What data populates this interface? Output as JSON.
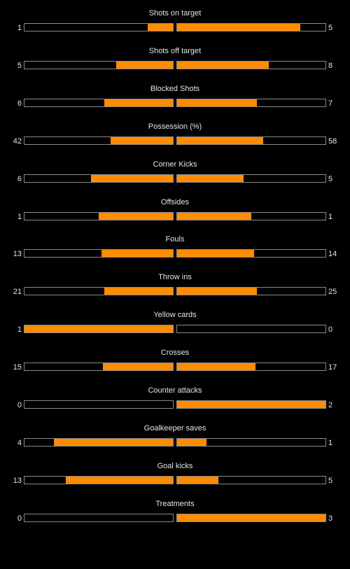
{
  "colors": {
    "background": "#000000",
    "bar_fill": "#ff8c00",
    "bar_border": "#8a8a8a",
    "text": "#e6e6e6"
  },
  "stats": [
    {
      "label": "Shots on target",
      "home": "1",
      "away": "5",
      "home_fill": 0.17,
      "away_fill": 0.83
    },
    {
      "label": "Shots off target",
      "home": "5",
      "away": "8",
      "home_fill": 0.38,
      "away_fill": 0.62
    },
    {
      "label": "Blocked Shots",
      "home": "6",
      "away": "7",
      "home_fill": 0.46,
      "away_fill": 0.54
    },
    {
      "label": "Possession (%)",
      "home": "42",
      "away": "58",
      "home_fill": 0.42,
      "away_fill": 0.58
    },
    {
      "label": "Corner Kicks",
      "home": "6",
      "away": "5",
      "home_fill": 0.55,
      "away_fill": 0.45
    },
    {
      "label": "Offsides",
      "home": "1",
      "away": "1",
      "home_fill": 0.5,
      "away_fill": 0.5
    },
    {
      "label": "Fouls",
      "home": "13",
      "away": "14",
      "home_fill": 0.48,
      "away_fill": 0.52
    },
    {
      "label": "Throw ins",
      "home": "21",
      "away": "25",
      "home_fill": 0.46,
      "away_fill": 0.54
    },
    {
      "label": "Yellow cards",
      "home": "1",
      "away": "0",
      "home_fill": 1.0,
      "away_fill": 0.0
    },
    {
      "label": "Crosses",
      "home": "15",
      "away": "17",
      "home_fill": 0.47,
      "away_fill": 0.53
    },
    {
      "label": "Counter attacks",
      "home": "0",
      "away": "2",
      "home_fill": 0.0,
      "away_fill": 1.0
    },
    {
      "label": "Goalkeeper saves",
      "home": "4",
      "away": "1",
      "home_fill": 0.8,
      "away_fill": 0.2
    },
    {
      "label": "Goal kicks",
      "home": "13",
      "away": "5",
      "home_fill": 0.72,
      "away_fill": 0.28
    },
    {
      "label": "Treatments",
      "home": "0",
      "away": "3",
      "home_fill": 0.0,
      "away_fill": 1.0
    }
  ]
}
